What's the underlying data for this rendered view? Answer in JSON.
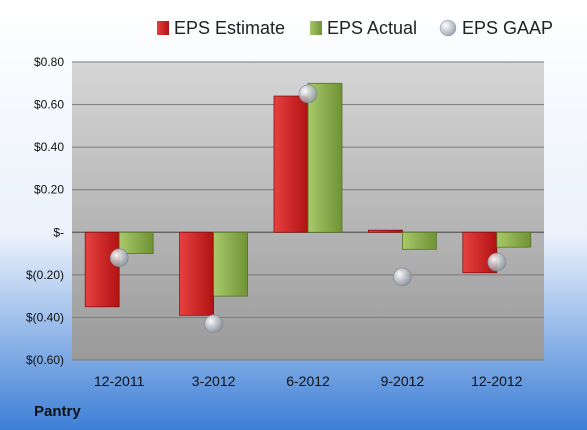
{
  "chart_data": {
    "type": "bar",
    "title": "",
    "xlabel": "",
    "ylabel": "",
    "categories": [
      "12-2011",
      "3-2012",
      "6-2012",
      "9-2012",
      "12-2012"
    ],
    "series": [
      {
        "name": "EPS Estimate",
        "kind": "bar",
        "color": "#d42020",
        "values": [
          -0.35,
          -0.39,
          0.64,
          0.01,
          -0.19
        ]
      },
      {
        "name": "EPS Actual",
        "kind": "bar",
        "color": "#8cb04a",
        "values": [
          -0.1,
          -0.3,
          0.7,
          -0.08,
          -0.07
        ]
      },
      {
        "name": "EPS GAAP",
        "kind": "marker",
        "color": "#b8bfc8",
        "values": [
          -0.12,
          -0.43,
          0.65,
          -0.21,
          -0.14
        ]
      }
    ],
    "ylim": [
      -0.6,
      0.8
    ],
    "yticks": [
      0.8,
      0.6,
      0.4,
      0.2,
      0,
      -0.2,
      -0.4,
      -0.6
    ],
    "ytick_labels": [
      "$0.80",
      "$0.60",
      "$0.40",
      "$0.20",
      "$-",
      "$(0.20)",
      "$(0.40)",
      "$(0.60)"
    ],
    "grid": true,
    "legend_position": "top"
  },
  "footer": {
    "company": "Pantry"
  }
}
